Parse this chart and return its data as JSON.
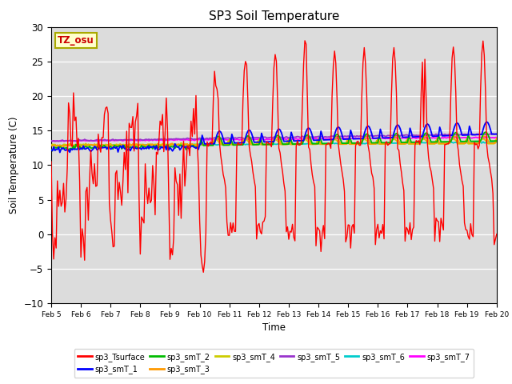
{
  "title": "SP3 Soil Temperature",
  "xlabel": "Time",
  "ylabel": "Soil Temperature (C)",
  "ylim": [
    -10,
    30
  ],
  "xlim": [
    0,
    360
  ],
  "tz_label": "TZ_osu",
  "bg_color": "#dcdcdc",
  "series_colors": {
    "sp3_Tsurface": "#ff0000",
    "sp3_smT_1": "#0000ff",
    "sp3_smT_2": "#00bb00",
    "sp3_smT_3": "#ff9900",
    "sp3_smT_4": "#cccc00",
    "sp3_smT_5": "#9933cc",
    "sp3_smT_6": "#00cccc",
    "sp3_smT_7": "#ff00ff"
  },
  "x_tick_labels": [
    "Feb 5",
    "Feb 6",
    "Feb 7",
    "Feb 8",
    "Feb 9",
    "Feb 10",
    "Feb 11",
    "Feb 12",
    "Feb 13",
    "Feb 14",
    "Feb 15",
    "Feb 16",
    "Feb 17",
    "Feb 18",
    "Feb 19",
    "Feb 20"
  ],
  "x_tick_positions": [
    0,
    24,
    48,
    72,
    96,
    120,
    144,
    168,
    192,
    216,
    240,
    264,
    288,
    312,
    336,
    360
  ],
  "legend_order": [
    "sp3_Tsurface",
    "sp3_smT_1",
    "sp3_smT_2",
    "sp3_smT_3",
    "sp3_smT_4",
    "sp3_smT_5",
    "sp3_smT_6",
    "sp3_smT_7"
  ]
}
